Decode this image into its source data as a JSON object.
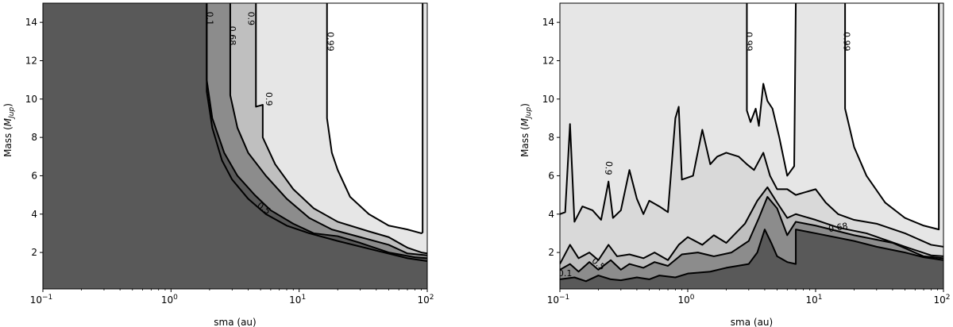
{
  "chart_data": [
    {
      "type": "contour",
      "title": "",
      "xlabel": "sma (au)",
      "ylabel": "Mass (M_Jup)",
      "ylabel_parts": {
        "main": "Mass (",
        "sym": "M",
        "sub": "Jup",
        "end": ")"
      },
      "xscale": "log",
      "xlim": [
        0.1,
        100
      ],
      "ylim": [
        0.1,
        15
      ],
      "xticks": [
        {
          "value": 0.1,
          "base": "10",
          "exp": "−1"
        },
        {
          "value": 1,
          "base": "10",
          "exp": "0"
        },
        {
          "value": 10,
          "base": "10",
          "exp": "1"
        },
        {
          "value": 100,
          "base": "10",
          "exp": "2"
        }
      ],
      "yticks": [
        "2",
        "4",
        "6",
        "8",
        "10",
        "12",
        "14"
      ],
      "colors": {
        "lt0.1": "#595959",
        "0.1-0.5": "#595959",
        "0.5-0.68": "#8c8c8c",
        "0.68-0.9": "#bfbfbf",
        "0.9-0.99": "#e6e6e6",
        "gt0.99": "#ffffff"
      },
      "levels": [
        {
          "level": "0.1",
          "points": [
            [
              1.9,
              15
            ],
            [
              1.9,
              10.4
            ],
            [
              2.1,
              8.5
            ],
            [
              2.5,
              6.8
            ],
            [
              3,
              5.8
            ],
            [
              4,
              4.8
            ],
            [
              5.5,
              4
            ],
            [
              8,
              3.4
            ],
            [
              12,
              3
            ],
            [
              20,
              2.6
            ],
            [
              40,
              2.1
            ],
            [
              70,
              1.7
            ],
            [
              100,
              1.55
            ]
          ]
        },
        {
          "level": "0.5",
          "points": [
            [
              1.9,
              15
            ],
            [
              1.9,
              11
            ],
            [
              2.1,
              9
            ],
            [
              2.6,
              7.2
            ],
            [
              3.3,
              6
            ],
            [
              4.5,
              5
            ],
            [
              6,
              4.2
            ],
            [
              9,
              3.5
            ],
            [
              13,
              3
            ],
            [
              20,
              2.85
            ],
            [
              30,
              2.5
            ],
            [
              50,
              2
            ],
            [
              80,
              1.75
            ],
            [
              100,
              1.7
            ]
          ]
        },
        {
          "level": "0.68",
          "points": [
            [
              2.9,
              15
            ],
            [
              2.9,
              10.2
            ],
            [
              3.3,
              8.5
            ],
            [
              4,
              7.2
            ],
            [
              5.5,
              6
            ],
            [
              8,
              4.8
            ],
            [
              12,
              3.8
            ],
            [
              18,
              3.2
            ],
            [
              30,
              2.8
            ],
            [
              50,
              2.4
            ],
            [
              70,
              1.95
            ],
            [
              100,
              1.85
            ]
          ]
        },
        {
          "level": "0.9",
          "points": [
            [
              4.6,
              15
            ],
            [
              4.6,
              9.6
            ],
            [
              5.2,
              9.7
            ],
            [
              5.2,
              8
            ],
            [
              6.5,
              6.6
            ],
            [
              9,
              5.3
            ],
            [
              13,
              4.3
            ],
            [
              20,
              3.6
            ],
            [
              35,
              3.1
            ],
            [
              50,
              2.8
            ],
            [
              70,
              2.25
            ],
            [
              90,
              2
            ],
            [
              100,
              1.95
            ]
          ]
        },
        {
          "level": "0.99",
          "points": [
            [
              16.5,
              15
            ],
            [
              16.5,
              9
            ],
            [
              18,
              7.2
            ],
            [
              20,
              6.3
            ],
            [
              25,
              4.9
            ],
            [
              35,
              4
            ],
            [
              50,
              3.4
            ],
            [
              70,
              3.2
            ],
            [
              90,
              3
            ],
            [
              92,
              3.05
            ],
            [
              92,
              15
            ]
          ]
        }
      ],
      "contour_labels": [
        {
          "text": "0.1",
          "x": 2.0,
          "y": 14.2,
          "rotate": 90
        },
        {
          "text": "0.68",
          "x": 3.0,
          "y": 13.3,
          "rotate": 90
        },
        {
          "text": "0.9",
          "x": 4.2,
          "y": 14.2,
          "rotate": 90
        },
        {
          "text": "0.9",
          "x": 5.8,
          "y": 10.0,
          "rotate": 90
        },
        {
          "text": "0.99",
          "x": 17.5,
          "y": 13.0,
          "rotate": 90
        },
        {
          "text": "0.5",
          "x": 5.3,
          "y": 4.3,
          "rotate": 35
        }
      ]
    },
    {
      "type": "contour",
      "title": "",
      "xlabel": "sma (au)",
      "ylabel": "Mass (M_Jup)",
      "ylabel_parts": {
        "main": "Mass (",
        "sym": "M",
        "sub": "Jup",
        "end": ")"
      },
      "xscale": "log",
      "xlim": [
        0.1,
        100
      ],
      "ylim": [
        0.1,
        15
      ],
      "xticks": [
        {
          "value": 0.1,
          "base": "10",
          "exp": "−1"
        },
        {
          "value": 1,
          "base": "10",
          "exp": "0"
        },
        {
          "value": 10,
          "base": "10",
          "exp": "1"
        },
        {
          "value": 100,
          "base": "10",
          "exp": "2"
        }
      ],
      "yticks": [
        "2",
        "4",
        "6",
        "8",
        "10",
        "12",
        "14"
      ],
      "colors": {
        "lt0.1": "#595959",
        "0.1-0.5": "#8c8c8c",
        "0.5-0.68": "#bfbfbf",
        "0.68-0.9": "#d9d9d9",
        "0.9-0.99": "#e6e6e6",
        "gt0.99": "#ffffff"
      },
      "levels": [
        {
          "level": "0.1",
          "points": [
            [
              0.1,
              0.6
            ],
            [
              0.13,
              0.7
            ],
            [
              0.16,
              0.5
            ],
            [
              0.2,
              0.8
            ],
            [
              0.25,
              0.6
            ],
            [
              0.3,
              0.55
            ],
            [
              0.4,
              0.7
            ],
            [
              0.5,
              0.6
            ],
            [
              0.6,
              0.8
            ],
            [
              0.8,
              0.7
            ],
            [
              1,
              0.9
            ],
            [
              1.5,
              1.0
            ],
            [
              2,
              1.2
            ],
            [
              3,
              1.4
            ],
            [
              3.5,
              2.0
            ],
            [
              4,
              3.2
            ],
            [
              4.5,
              2.5
            ],
            [
              5,
              1.8
            ],
            [
              6,
              1.5
            ],
            [
              7,
              1.4
            ],
            [
              7,
              3.2
            ],
            [
              10,
              3.0
            ],
            [
              20,
              2.6
            ],
            [
              30,
              2.3
            ],
            [
              50,
              2.0
            ],
            [
              70,
              1.75
            ],
            [
              100,
              1.6
            ]
          ]
        },
        {
          "level": "0.5",
          "points": [
            [
              0.1,
              1.1
            ],
            [
              0.12,
              1.4
            ],
            [
              0.14,
              1.0
            ],
            [
              0.17,
              1.5
            ],
            [
              0.2,
              1.1
            ],
            [
              0.25,
              1.6
            ],
            [
              0.3,
              1.1
            ],
            [
              0.35,
              1.4
            ],
            [
              0.45,
              1.2
            ],
            [
              0.55,
              1.5
            ],
            [
              0.7,
              1.3
            ],
            [
              0.9,
              1.9
            ],
            [
              1.2,
              2.0
            ],
            [
              1.6,
              1.8
            ],
            [
              2.2,
              2.0
            ],
            [
              3,
              2.6
            ],
            [
              3.6,
              3.8
            ],
            [
              4.2,
              4.9
            ],
            [
              5,
              4.3
            ],
            [
              6,
              2.9
            ],
            [
              7,
              3.6
            ],
            [
              10,
              3.4
            ],
            [
              20,
              2.9
            ],
            [
              40,
              2.5
            ],
            [
              70,
              1.8
            ],
            [
              100,
              1.7
            ]
          ]
        },
        {
          "level": "0.68",
          "points": [
            [
              0.1,
              1.4
            ],
            [
              0.12,
              2.4
            ],
            [
              0.14,
              1.7
            ],
            [
              0.17,
              2.0
            ],
            [
              0.2,
              1.6
            ],
            [
              0.24,
              2.4
            ],
            [
              0.28,
              1.8
            ],
            [
              0.35,
              1.9
            ],
            [
              0.45,
              1.7
            ],
            [
              0.55,
              2.0
            ],
            [
              0.7,
              1.6
            ],
            [
              0.85,
              2.4
            ],
            [
              1.0,
              2.8
            ],
            [
              1.3,
              2.4
            ],
            [
              1.6,
              2.9
            ],
            [
              2.0,
              2.5
            ],
            [
              2.8,
              3.5
            ],
            [
              3.5,
              4.7
            ],
            [
              4.2,
              5.4
            ],
            [
              5,
              4.6
            ],
            [
              6,
              3.8
            ],
            [
              7,
              4.0
            ],
            [
              10,
              3.7
            ],
            [
              15,
              3.3
            ],
            [
              25,
              3.0
            ],
            [
              50,
              2.3
            ],
            [
              80,
              1.85
            ],
            [
              100,
              1.8
            ]
          ]
        },
        {
          "level": "0.9",
          "points": [
            [
              0.1,
              4.0
            ],
            [
              0.11,
              4.1
            ],
            [
              0.12,
              8.7
            ],
            [
              0.13,
              3.6
            ],
            [
              0.15,
              4.4
            ],
            [
              0.18,
              4.2
            ],
            [
              0.21,
              3.7
            ],
            [
              0.24,
              5.7
            ],
            [
              0.26,
              3.8
            ],
            [
              0.3,
              4.2
            ],
            [
              0.35,
              6.3
            ],
            [
              0.4,
              4.8
            ],
            [
              0.45,
              4.0
            ],
            [
              0.5,
              4.7
            ],
            [
              0.6,
              4.4
            ],
            [
              0.7,
              4.1
            ],
            [
              0.8,
              9.0
            ],
            [
              0.85,
              9.6
            ],
            [
              0.9,
              5.8
            ],
            [
              1.1,
              6.0
            ],
            [
              1.3,
              8.4
            ],
            [
              1.5,
              6.6
            ],
            [
              1.7,
              7.0
            ],
            [
              2.0,
              7.2
            ],
            [
              2.5,
              7.0
            ],
            [
              2.9,
              6.6
            ],
            [
              3.3,
              6.3
            ],
            [
              3.9,
              7.2
            ],
            [
              4.4,
              6.0
            ],
            [
              5,
              5.3
            ],
            [
              6,
              5.3
            ],
            [
              7,
              5.0
            ],
            [
              10,
              5.3
            ],
            [
              12,
              4.6
            ],
            [
              15,
              4.0
            ],
            [
              20,
              3.7
            ],
            [
              30,
              3.5
            ],
            [
              50,
              3.0
            ],
            [
              80,
              2.4
            ],
            [
              100,
              2.3
            ]
          ]
        },
        {
          "level": "0.99",
          "points": [
            [
              2.9,
              15
            ],
            [
              2.9,
              9.4
            ],
            [
              3.1,
              8.8
            ],
            [
              3.4,
              9.5
            ],
            [
              3.6,
              8.6
            ],
            [
              3.9,
              10.8
            ],
            [
              4.2,
              9.9
            ],
            [
              4.6,
              9.5
            ],
            [
              5.2,
              8.0
            ],
            [
              6,
              6.0
            ],
            [
              6.8,
              6.5
            ],
            [
              7,
              15
            ],
            [
              17,
              15
            ],
            [
              17,
              9.5
            ],
            [
              20,
              7.5
            ],
            [
              25,
              6.0
            ],
            [
              35,
              4.6
            ],
            [
              50,
              3.8
            ],
            [
              70,
              3.4
            ],
            [
              92,
              3.2
            ],
            [
              92,
              15
            ]
          ]
        }
      ],
      "contour_labels": [
        {
          "text": "0.99",
          "x": 3.0,
          "y": 13.0,
          "rotate": 90
        },
        {
          "text": "0.99",
          "x": 17.5,
          "y": 13.0,
          "rotate": 90
        },
        {
          "text": "0.9",
          "x": 0.24,
          "y": 6.4,
          "rotate": 95
        },
        {
          "text": "0.68",
          "x": 15,
          "y": 3.3,
          "rotate": -10
        },
        {
          "text": "0.1",
          "x": 0.11,
          "y": 0.9,
          "rotate": 0
        },
        {
          "text": "0.5",
          "x": 0.2,
          "y": 1.4,
          "rotate": 40
        }
      ]
    }
  ]
}
